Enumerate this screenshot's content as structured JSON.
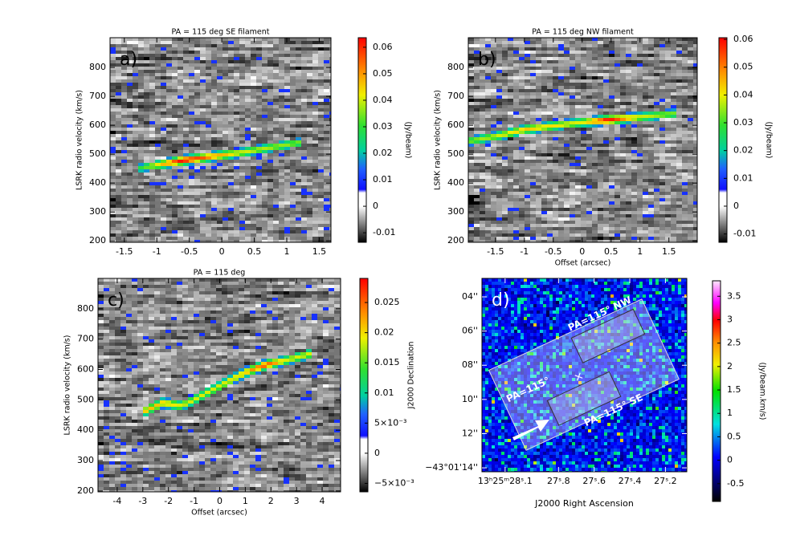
{
  "chart_data": [
    {
      "type": "image",
      "title": "PA = 115 deg SE filament",
      "label": "a)",
      "ylabel": "LSRK radio velocity (km/s)",
      "xlim": [
        -1.72,
        1.68
      ],
      "ylim": [
        195,
        903
      ],
      "xticks": [
        -1.5,
        -1,
        -0.5,
        0,
        0.5,
        1,
        1.5
      ],
      "yticks": [
        200,
        300,
        400,
        500,
        600,
        700,
        800
      ],
      "colorbar": {
        "label": "(Jy/beam)",
        "clim": [
          -0.0136,
          0.0636
        ],
        "ticks": [
          -0.01,
          0,
          0.01,
          0.02,
          0.03,
          0.04,
          0.05,
          0.06
        ]
      }
    },
    {
      "type": "image",
      "title": "PA = 115 deg NW filament",
      "label": "b)",
      "xlabel": "Offset (arcsec)",
      "ylabel": "LSRK radio velocity (km/s)",
      "xlim": [
        -1.97,
        1.99
      ],
      "ylim": [
        195,
        903
      ],
      "xticks": [
        -1.5,
        -1,
        -0.5,
        0,
        0.5,
        1,
        1.5
      ],
      "yticks": [
        200,
        300,
        400,
        500,
        600,
        700,
        800
      ],
      "colorbar": {
        "label": "(Jy/beam)",
        "clim": [
          -0.013,
          0.0606
        ],
        "ticks": [
          -0.01,
          0,
          0.01,
          0.02,
          0.03,
          0.04,
          0.05,
          0.06
        ]
      }
    },
    {
      "type": "image",
      "title": "PA = 115 deg",
      "label": "c)",
      "xlabel": "Offset (arcsec)",
      "ylabel": "LSRK radio velocity (km/s)",
      "xlim": [
        -4.75,
        4.72
      ],
      "ylim": [
        197,
        900
      ],
      "xticks": [
        -4,
        -3,
        -2,
        -1,
        0,
        1,
        2,
        3,
        4
      ],
      "yticks": [
        200,
        300,
        400,
        500,
        600,
        700,
        800
      ],
      "colorbar": {
        "clim": [
          -0.0064,
          0.029
        ],
        "ticks": [
          {
            "value": -0.005,
            "label": "−5×10⁻³"
          },
          0,
          {
            "value": 0.005,
            "label": "5×10⁻³"
          },
          0.01,
          0.015,
          0.02,
          0.025
        ]
      }
    },
    {
      "type": "image",
      "label": "d)",
      "xlabel": "J2000 Right Ascension",
      "ylabel": "J2000 Declination",
      "xlim": [
        28.23,
        27.08
      ],
      "ylim": [
        14.23,
        2.92
      ],
      "xticks": [
        {
          "value": 28.1,
          "label": "13ʰ25ᵐ28ˢ.1"
        },
        {
          "value": 27.8,
          "label": "27ˢ.8"
        },
        {
          "value": 27.6,
          "label": "27ˢ.6"
        },
        {
          "value": 27.4,
          "label": "27ˢ.4"
        },
        {
          "value": 27.2,
          "label": "27ˢ.2"
        }
      ],
      "yticks": [
        {
          "value": 4,
          "label": "04''"
        },
        {
          "value": 6,
          "label": "06''"
        },
        {
          "value": 8,
          "label": "08''"
        },
        {
          "value": 10,
          "label": "10''"
        },
        {
          "value": 12,
          "label": "12''"
        },
        {
          "value": 14,
          "label": "−43°01'14''"
        }
      ],
      "annotations": [
        "PA=115° NW",
        "PA=115°",
        "PA=115° SE"
      ],
      "colorbar": {
        "label": "(Jy/beam.km/s)",
        "clim": [
          -0.88,
          3.83
        ],
        "ticks": [
          -0.5,
          0,
          0.5,
          1,
          1.5,
          2,
          2.5,
          3,
          3.5
        ]
      }
    }
  ]
}
